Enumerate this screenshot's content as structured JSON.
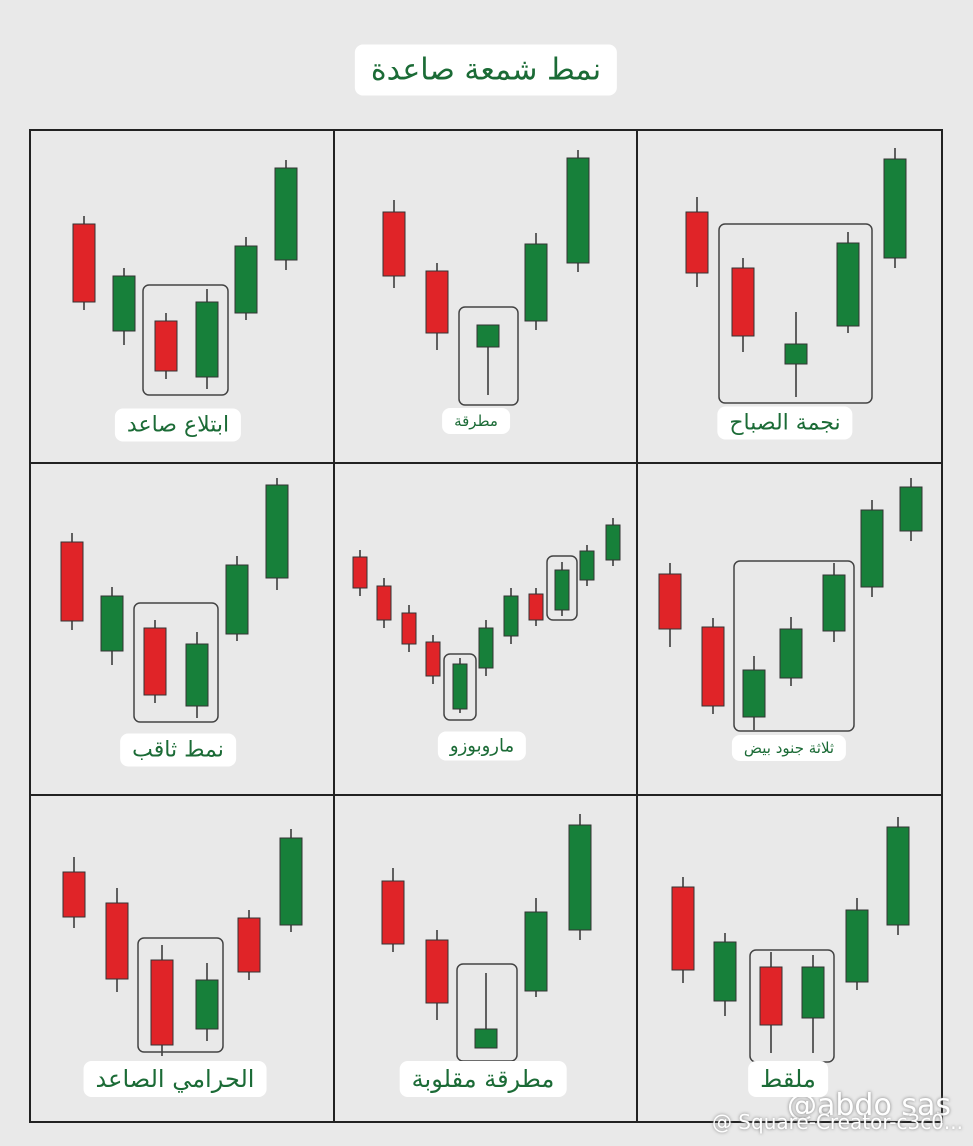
{
  "header": {
    "title": "نمط شمعة صاعدة"
  },
  "cells": [
    {
      "label": "ابتلاع صاعد"
    },
    {
      "label": "مطرقة"
    },
    {
      "label": "نجمة الصباح"
    },
    {
      "label": "نمط ثاقب"
    },
    {
      "label": "ماروبوزو"
    },
    {
      "label": "ثلاثة جنود بيض"
    },
    {
      "label": "الحرامي الصاعد"
    },
    {
      "label": "مطرقة مقلوبة"
    },
    {
      "label": "ملقط"
    }
  ],
  "watermark": {
    "handle": "@abdo sas",
    "source": "@ Square-Creator-c3c0..."
  }
}
